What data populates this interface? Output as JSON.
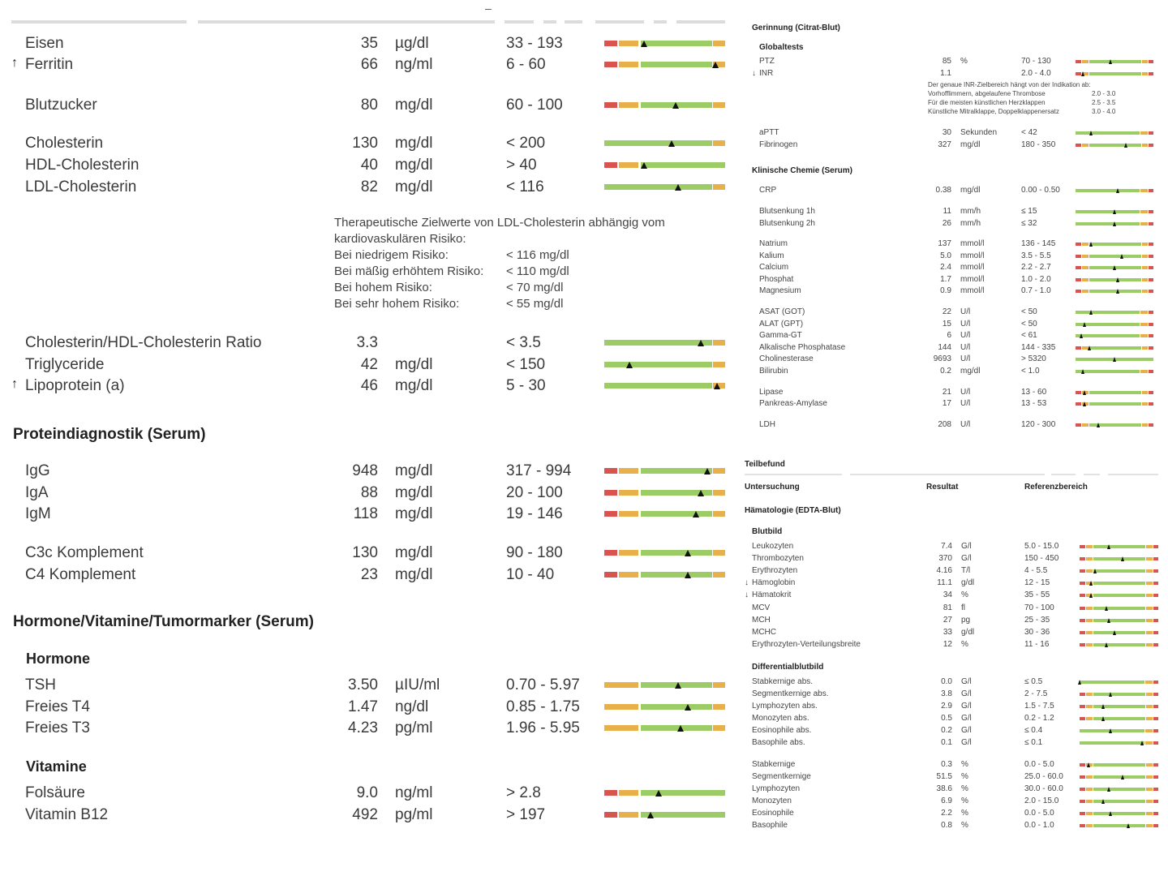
{
  "colors": {
    "red": "#d9534f",
    "orange": "#e8b04a",
    "green": "#9ccc65",
    "marker": "#111111"
  },
  "left": {
    "dash": "–",
    "rows": [
      {
        "name": "Eisen",
        "value": "35",
        "unit": "µg/dl",
        "ref": "33 - 193",
        "flag": ""
      },
      {
        "name": "Ferritin",
        "value": "66",
        "unit": "ng/ml",
        "ref": "6 - 60",
        "flag": "↑"
      },
      {
        "name": "Blutzucker",
        "value": "80",
        "unit": "mg/dl",
        "ref": "60 - 100",
        "flag": ""
      },
      {
        "name": "Cholesterin",
        "value": "130",
        "unit": "mg/dl",
        "ref": "< 200",
        "flag": ""
      },
      {
        "name": "HDL-Cholesterin",
        "value": "40",
        "unit": "mg/dl",
        "ref": "> 40",
        "flag": ""
      },
      {
        "name": "LDL-Cholesterin",
        "value": "82",
        "unit": "mg/dl",
        "ref": "< 116",
        "flag": ""
      },
      {
        "name": "Cholesterin/HDL-Cholesterin Ratio",
        "value": "3.3",
        "unit": "",
        "ref": "< 3.5",
        "flag": ""
      },
      {
        "name": "Triglyceride",
        "value": "42",
        "unit": "mg/dl",
        "ref": "< 150",
        "flag": ""
      },
      {
        "name": "Lipoprotein (a)",
        "value": "46",
        "unit": "mg/dl",
        "ref": "5 - 30",
        "flag": "↑"
      },
      {
        "name": "IgG",
        "value": "948",
        "unit": "mg/dl",
        "ref": "317 - 994",
        "flag": ""
      },
      {
        "name": "IgA",
        "value": "88",
        "unit": "mg/dl",
        "ref": "20 - 100",
        "flag": ""
      },
      {
        "name": "IgM",
        "value": "118",
        "unit": "mg/dl",
        "ref": "19 - 146",
        "flag": ""
      },
      {
        "name": "C3c Komplement",
        "value": "130",
        "unit": "mg/dl",
        "ref": "90 - 180",
        "flag": ""
      },
      {
        "name": "C4 Komplement",
        "value": "23",
        "unit": "mg/dl",
        "ref": "10 - 40",
        "flag": ""
      },
      {
        "name": "TSH",
        "value": "3.50",
        "unit": "µIU/ml",
        "ref": "0.70 - 5.97",
        "flag": ""
      },
      {
        "name": "Freies T4",
        "value": "1.47",
        "unit": "ng/dl",
        "ref": "0.85 - 1.75",
        "flag": ""
      },
      {
        "name": "Freies T3",
        "value": "4.23",
        "unit": "pg/ml",
        "ref": "1.96 - 5.95",
        "flag": ""
      },
      {
        "name": "Folsäure",
        "value": "9.0",
        "unit": "ng/ml",
        "ref": "> 2.8",
        "flag": ""
      },
      {
        "name": "Vitamin B12",
        "value": "492",
        "unit": "pg/ml",
        "ref": "> 197",
        "flag": ""
      }
    ],
    "ldl_note": {
      "line1": "Therapeutische Zielwerte von LDL-Cholesterin abhängig vom",
      "line2": "kardiovaskulären Risiko:",
      "items": [
        {
          "label": "Bei niedrigem Risiko:",
          "value": "< 116 mg/dl"
        },
        {
          "label": "Bei mäßig erhöhtem Risiko:",
          "value": "< 110 mg/dl"
        },
        {
          "label": "Bei hohem Risiko:",
          "value": "< 70 mg/dl"
        },
        {
          "label": "Bei sehr hohem Risiko:",
          "value": "< 55 mg/dl"
        }
      ]
    },
    "sections": {
      "protein": "Proteindiagnostik (Serum)",
      "hormone_block": "Hormone/Vitamine/Tumormarker (Serum)",
      "hormone": "Hormone",
      "vitamine": "Vitamine"
    }
  },
  "right": {
    "gerinnung": "Gerinnung (Citrat-Blut)",
    "globaltests": "Globaltests",
    "klinchem": "Klinische Chemie (Serum)",
    "inr_note": {
      "lines": [
        {
          "t": "Der genaue INR-Zielbereich hängt von der Indikation ab:",
          "v": ""
        },
        {
          "t": "Vorhofflimmern, abgelaufene Thrombose",
          "v": "2.0 - 3.0"
        },
        {
          "t": "Für die meisten künstlichen Herzklappen",
          "v": "2.5 - 3.5"
        },
        {
          "t": "Künstliche Mitralklappe, Doppelklappenersatz",
          "v": "3.0 - 4.0"
        }
      ]
    },
    "teilbefund": "Teilbefund",
    "header": {
      "untersuchung": "Untersuchung",
      "resultat": "Resultat",
      "referenz": "Referenzbereich"
    },
    "haematologie": "Hämatologie (EDTA-Blut)",
    "blutbild": "Blutbild",
    "diffblutbild": "Differentialblutbild",
    "rows": [
      {
        "name": "PTZ",
        "value": "85",
        "unit": "%",
        "ref": "70 - 130",
        "flag": ""
      },
      {
        "name": "INR",
        "value": "1.1",
        "unit": "",
        "ref": "2.0 - 4.0",
        "flag": "↓"
      },
      {
        "name": "aPTT",
        "value": "30",
        "unit": "Sekunden",
        "ref": "< 42",
        "flag": ""
      },
      {
        "name": "Fibrinogen",
        "value": "327",
        "unit": "mg/dl",
        "ref": "180 - 350",
        "flag": ""
      },
      {
        "name": "CRP",
        "value": "0.38",
        "unit": "mg/dl",
        "ref": "0.00 - 0.50",
        "flag": ""
      },
      {
        "name": "Blutsenkung 1h",
        "value": "11",
        "unit": "mm/h",
        "ref": "≤ 15",
        "flag": ""
      },
      {
        "name": "Blutsenkung 2h",
        "value": "26",
        "unit": "mm/h",
        "ref": "≤ 32",
        "flag": ""
      },
      {
        "name": "Natrium",
        "value": "137",
        "unit": "mmol/l",
        "ref": "136 - 145",
        "flag": ""
      },
      {
        "name": "Kalium",
        "value": "5.0",
        "unit": "mmol/l",
        "ref": "3.5 - 5.5",
        "flag": ""
      },
      {
        "name": "Calcium",
        "value": "2.4",
        "unit": "mmol/l",
        "ref": "2.2 - 2.7",
        "flag": ""
      },
      {
        "name": "Phosphat",
        "value": "1.7",
        "unit": "mmol/l",
        "ref": "1.0 - 2.0",
        "flag": ""
      },
      {
        "name": "Magnesium",
        "value": "0.9",
        "unit": "mmol/l",
        "ref": "0.7 - 1.0",
        "flag": ""
      },
      {
        "name": "ASAT (GOT)",
        "value": "22",
        "unit": "U/l",
        "ref": "< 50",
        "flag": ""
      },
      {
        "name": "ALAT (GPT)",
        "value": "15",
        "unit": "U/l",
        "ref": "< 50",
        "flag": ""
      },
      {
        "name": "Gamma-GT",
        "value": "6",
        "unit": "U/l",
        "ref": "< 61",
        "flag": ""
      },
      {
        "name": "Alkalische Phosphatase",
        "value": "144",
        "unit": "U/l",
        "ref": "144 - 335",
        "flag": ""
      },
      {
        "name": "Cholinesterase",
        "value": "9693",
        "unit": "U/l",
        "ref": "> 5320",
        "flag": ""
      },
      {
        "name": "Bilirubin",
        "value": "0.2",
        "unit": "mg/dl",
        "ref": "< 1.0",
        "flag": ""
      },
      {
        "name": "Lipase",
        "value": "21",
        "unit": "U/l",
        "ref": "13 - 60",
        "flag": ""
      },
      {
        "name": "Pankreas-Amylase",
        "value": "17",
        "unit": "U/l",
        "ref": "13 - 53",
        "flag": ""
      },
      {
        "name": "LDH",
        "value": "208",
        "unit": "U/l",
        "ref": "120 - 300",
        "flag": ""
      },
      {
        "name": "Leukozyten",
        "value": "7.4",
        "unit": "G/l",
        "ref": "5.0 - 15.0",
        "flag": ""
      },
      {
        "name": "Thrombozyten",
        "value": "370",
        "unit": "G/l",
        "ref": "150 - 450",
        "flag": ""
      },
      {
        "name": "Erythrozyten",
        "value": "4.16",
        "unit": "T/l",
        "ref": "4 - 5.5",
        "flag": ""
      },
      {
        "name": "Hämoglobin",
        "value": "11.1",
        "unit": "g/dl",
        "ref": "12 - 15",
        "flag": "↓"
      },
      {
        "name": "Hämatokrit",
        "value": "34",
        "unit": "%",
        "ref": "35 - 55",
        "flag": "↓"
      },
      {
        "name": "MCV",
        "value": "81",
        "unit": "fl",
        "ref": "70 - 100",
        "flag": ""
      },
      {
        "name": "MCH",
        "value": "27",
        "unit": "pg",
        "ref": "25 - 35",
        "flag": ""
      },
      {
        "name": "MCHC",
        "value": "33",
        "unit": "g/dl",
        "ref": "30 - 36",
        "flag": ""
      },
      {
        "name": "Erythrozyten-Verteilungsbreite",
        "value": "12",
        "unit": "%",
        "ref": "11 - 16",
        "flag": ""
      },
      {
        "name": "Stabkernige abs.",
        "value": "0.0",
        "unit": "G/l",
        "ref": "≤ 0.5",
        "flag": ""
      },
      {
        "name": "Segmentkernige abs.",
        "value": "3.8",
        "unit": "G/l",
        "ref": "2 - 7.5",
        "flag": ""
      },
      {
        "name": "Lymphozyten abs.",
        "value": "2.9",
        "unit": "G/l",
        "ref": "1.5 - 7.5",
        "flag": ""
      },
      {
        "name": "Monozyten abs.",
        "value": "0.5",
        "unit": "G/l",
        "ref": "0.2 - 1.2",
        "flag": ""
      },
      {
        "name": "Eosinophile abs.",
        "value": "0.2",
        "unit": "G/l",
        "ref": "≤ 0.4",
        "flag": ""
      },
      {
        "name": "Basophile abs.",
        "value": "0.1",
        "unit": "G/l",
        "ref": "≤ 0.1",
        "flag": ""
      },
      {
        "name": "Stabkernige",
        "value": "0.3",
        "unit": "%",
        "ref": "0.0 - 5.0",
        "flag": ""
      },
      {
        "name": "Segmentkernige",
        "value": "51.5",
        "unit": "%",
        "ref": "25.0 - 60.0",
        "flag": ""
      },
      {
        "name": "Lymphozyten",
        "value": "38.6",
        "unit": "%",
        "ref": "30.0 - 60.0",
        "flag": ""
      },
      {
        "name": "Monozyten",
        "value": "6.9",
        "unit": "%",
        "ref": "2.0 - 15.0",
        "flag": ""
      },
      {
        "name": "Eosinophile",
        "value": "2.2",
        "unit": "%",
        "ref": "0.0 - 5.0",
        "flag": ""
      },
      {
        "name": "Basophile",
        "value": "0.8",
        "unit": "%",
        "ref": "0.0 - 1.0",
        "flag": ""
      }
    ]
  }
}
